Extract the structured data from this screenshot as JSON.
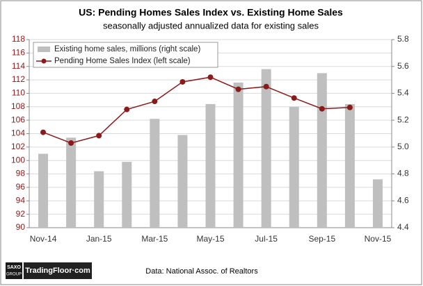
{
  "chart_data": {
    "type": "bar-line",
    "title": "US: Pending Homes Sales Index vs. Existing Home Sales",
    "subtitle": "seasonally adjusted annualized data for existing sales",
    "categories": [
      "Nov-14",
      null,
      "Jan-15",
      null,
      "Mar-15",
      null,
      "May-15",
      null,
      "Jul-15",
      null,
      "Sep-15",
      null,
      "Nov-15"
    ],
    "series": [
      {
        "name": "Existing home sales, millions (right scale)",
        "color": "#bfbfbf",
        "type": "bar",
        "axis": "y2",
        "values": [
          4.95,
          5.07,
          4.82,
          4.89,
          5.21,
          5.09,
          5.32,
          5.48,
          5.58,
          5.3,
          5.55,
          5.32,
          4.76
        ]
      },
      {
        "name": "Pending Home Sales Index (left scale)",
        "color": "#8b1a1a",
        "type": "line",
        "values": [
          104.2,
          102.6,
          103.7,
          107.6,
          108.8,
          111.7,
          112.4,
          110.6,
          111.0,
          109.3,
          107.7,
          107.9,
          null
        ]
      }
    ],
    "ylim": [
      90,
      118
    ],
    "yticks": [
      90,
      92,
      94,
      96,
      98,
      100,
      102,
      104,
      106,
      108,
      110,
      112,
      114,
      116,
      118
    ],
    "y2lim": [
      4.4,
      5.8
    ],
    "y2ticks": [
      4.4,
      4.6,
      4.8,
      {
        "value": 5,
        "label": "5.0"
      },
      5.2,
      5.4,
      5.6,
      5.8
    ],
    "grid": true,
    "legend": "upper left"
  },
  "footer": {
    "logo_top": "SAXO",
    "logo_bottom": "GROUP",
    "brand": "TradingFloor·com",
    "source": "Data: National Assoc. of Realtors"
  }
}
